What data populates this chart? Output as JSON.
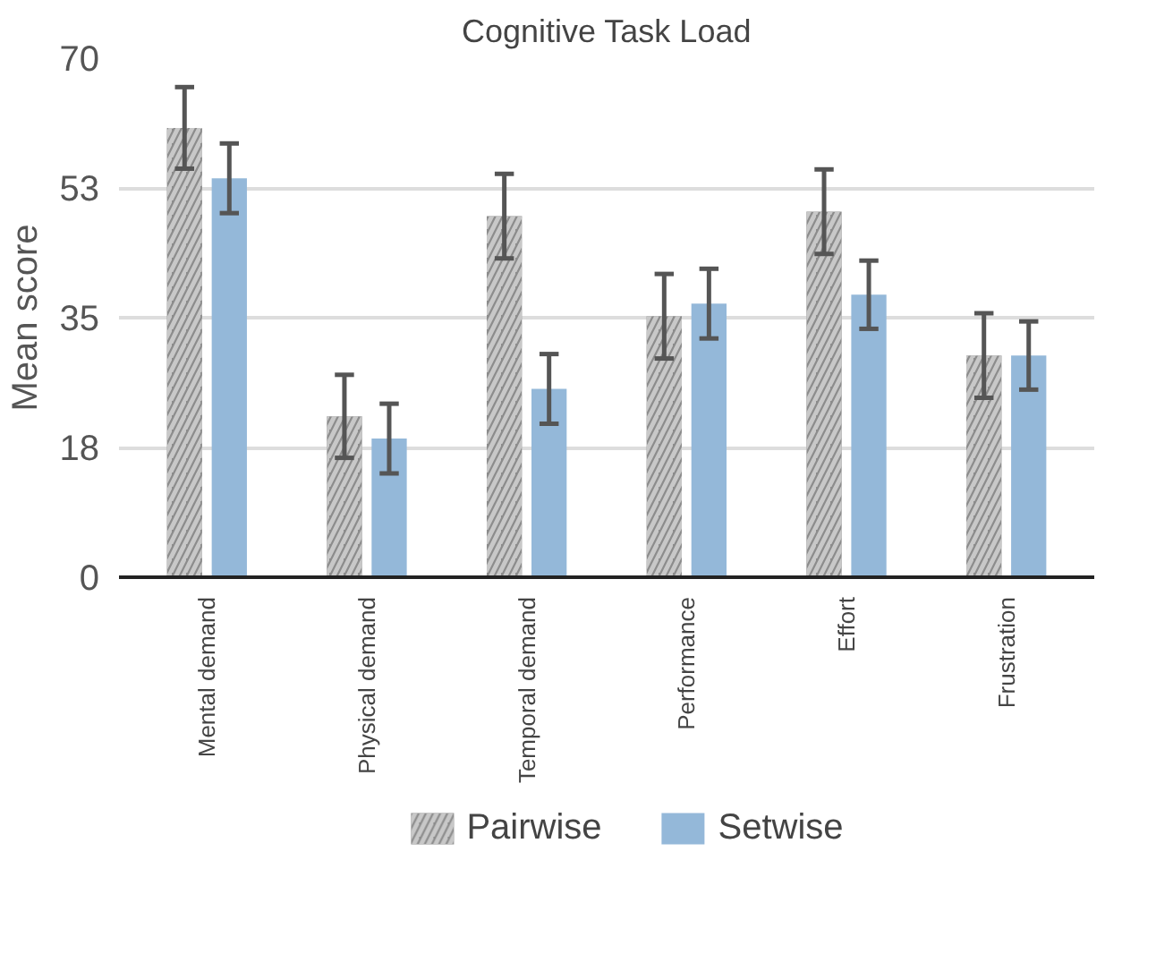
{
  "chart_data": {
    "type": "bar",
    "title": "Cognitive Task Load",
    "ylabel": "Mean score",
    "categories": [
      "Mental demand",
      "Physical demand",
      "Temporal demand",
      "Performance",
      "Effort",
      "Frustration"
    ],
    "series": [
      {
        "name": "Pairwise",
        "color": "#8c8c8c",
        "values": [
          60.6,
          21.7,
          48.7,
          35.2,
          49.3,
          29.9
        ],
        "errors": [
          5.5,
          5.6,
          5.7,
          5.7,
          5.7,
          5.7
        ]
      },
      {
        "name": "Setwise",
        "color": "#94b8d9",
        "values": [
          53.8,
          18.7,
          25.4,
          36.9,
          38.1,
          29.9
        ],
        "errors": [
          4.7,
          4.7,
          4.7,
          4.7,
          4.6,
          4.6
        ]
      }
    ],
    "ylim": [
      0,
      70
    ],
    "yticks": [
      0,
      {
        "value": 17.5,
        "label": "18"
      },
      35,
      {
        "value": 52.5,
        "label": "53"
      },
      70
    ],
    "grid": "y",
    "legend": "bottom"
  }
}
